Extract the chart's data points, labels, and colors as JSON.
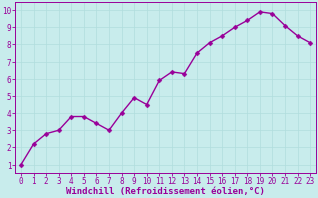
{
  "x": [
    0,
    1,
    2,
    3,
    4,
    5,
    6,
    7,
    8,
    9,
    10,
    11,
    12,
    13,
    14,
    15,
    16,
    17,
    18,
    19,
    20,
    21,
    22,
    23
  ],
  "y": [
    1,
    2.2,
    2.8,
    3.0,
    3.8,
    3.8,
    3.4,
    3.0,
    4.0,
    4.9,
    4.5,
    5.9,
    6.4,
    6.3,
    7.5,
    8.1,
    8.5,
    9.0,
    9.4,
    9.9,
    9.8,
    9.1,
    8.5,
    8.1
  ],
  "line_color": "#990099",
  "marker": "D",
  "marker_size": 2.5,
  "line_width": 1.0,
  "xlabel": "Windchill (Refroidissement éolien,°C)",
  "xlabel_fontsize": 6.5,
  "ylim": [
    0.5,
    10.5
  ],
  "xlim": [
    -0.5,
    23.5
  ],
  "yticks": [
    1,
    2,
    3,
    4,
    5,
    6,
    7,
    8,
    9,
    10
  ],
  "xtick_labels": [
    "0",
    "1",
    "2",
    "3",
    "4",
    "5",
    "6",
    "7",
    "8",
    "9",
    "10",
    "11",
    "12",
    "13",
    "14",
    "15",
    "16",
    "17",
    "18",
    "19",
    "20",
    "21",
    "22",
    "23"
  ],
  "grid_color": "#b0dddd",
  "bg_color": "#c8ecec",
  "label_color": "#990099",
  "tick_fontsize": 5.5,
  "xlabel_color": "#990099"
}
